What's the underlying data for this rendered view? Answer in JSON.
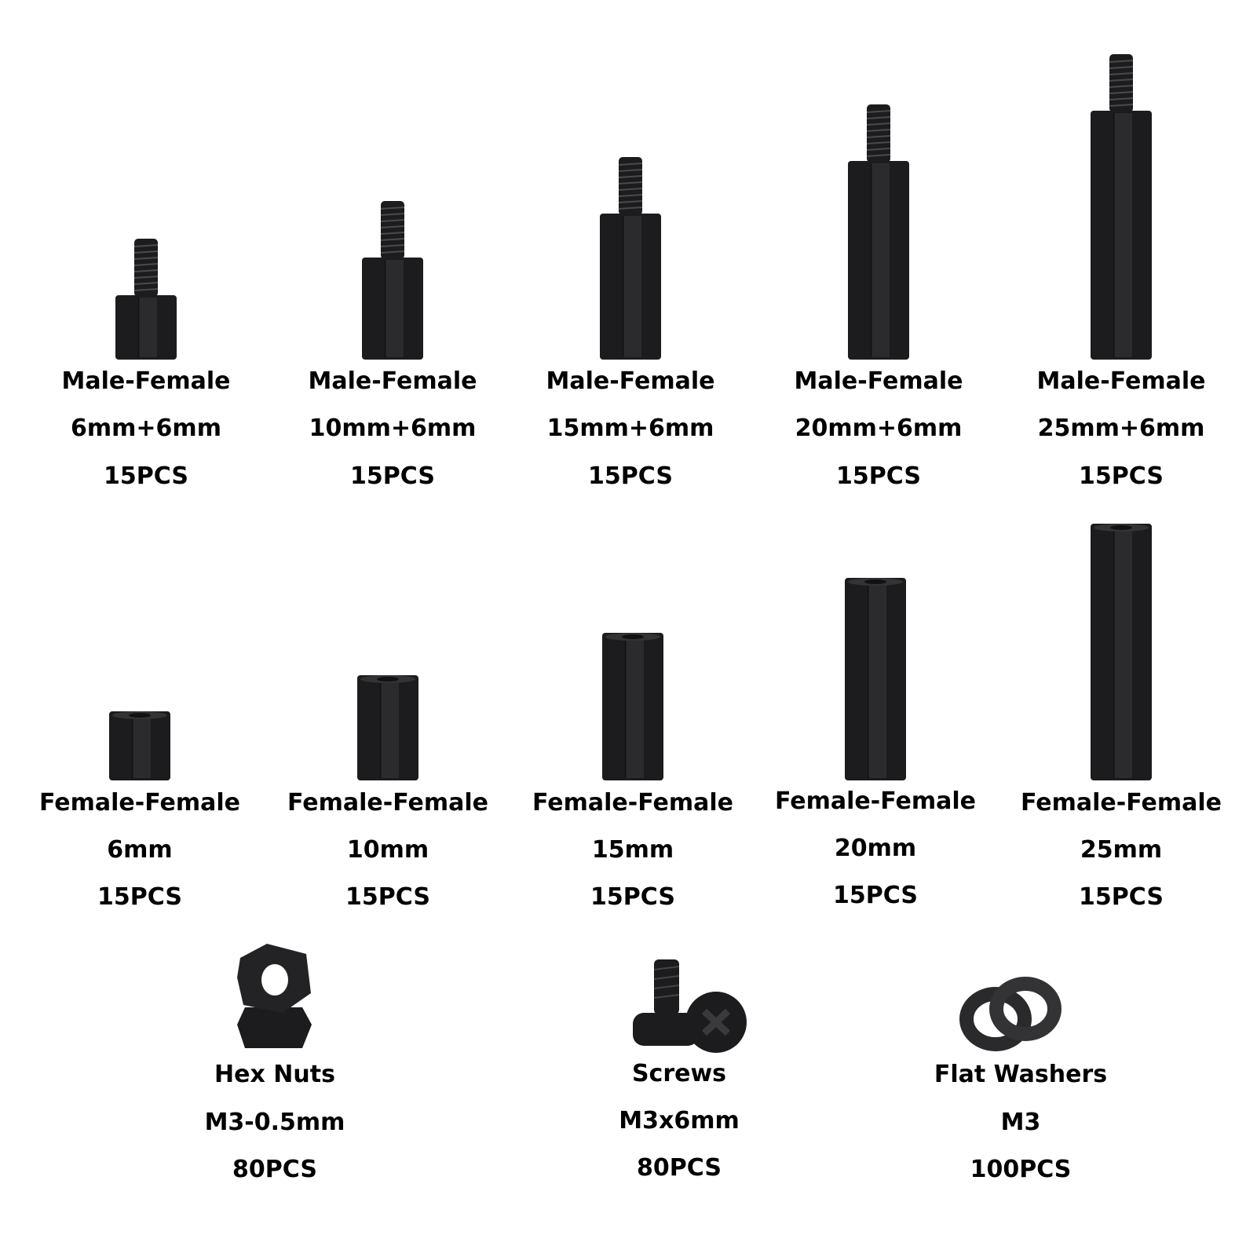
{
  "male_female": [
    {
      "type": "Male-Female",
      "size": "6mm+6mm",
      "qty": "15PCS"
    },
    {
      "type": "Male-Female",
      "size": "10mm+6mm",
      "qty": "15PCS"
    },
    {
      "type": "Male-Female",
      "size": "15mm+6mm",
      "qty": "15PCS"
    },
    {
      "type": "Male-Female",
      "size": "20mm+6mm",
      "qty": "15PCS"
    },
    {
      "type": "Male-Female",
      "size": "25mm+6mm",
      "qty": "15PCS"
    }
  ],
  "female_female": [
    {
      "type": "Female-Female",
      "size": "6mm",
      "qty": "15PCS"
    },
    {
      "type": "Female-Female",
      "size": "10mm",
      "qty": "15PCS"
    },
    {
      "type": "Female-Female",
      "size": "15mm",
      "qty": "15PCS"
    },
    {
      "type": "Female-Female",
      "size": "20mm",
      "qty": "15PCS"
    },
    {
      "type": "Female-Female",
      "size": "25mm",
      "qty": "15PCS"
    }
  ],
  "accessories": [
    {
      "type": "Hex Nuts",
      "size": "M3-0.5mm",
      "qty": "80PCS",
      "icon": "hex-nut-icon"
    },
    {
      "type": "Screws",
      "size": "M3x6mm",
      "qty": "80PCS",
      "icon": "screw-icon"
    },
    {
      "type": "Flat Washers",
      "size": "M3",
      "qty": "100PCS",
      "icon": "washer-icon"
    }
  ],
  "colors": {
    "part": "#1c1c1e",
    "part_highlight": "#3a3a3d",
    "text": "#000000",
    "background": "#ffffff"
  }
}
